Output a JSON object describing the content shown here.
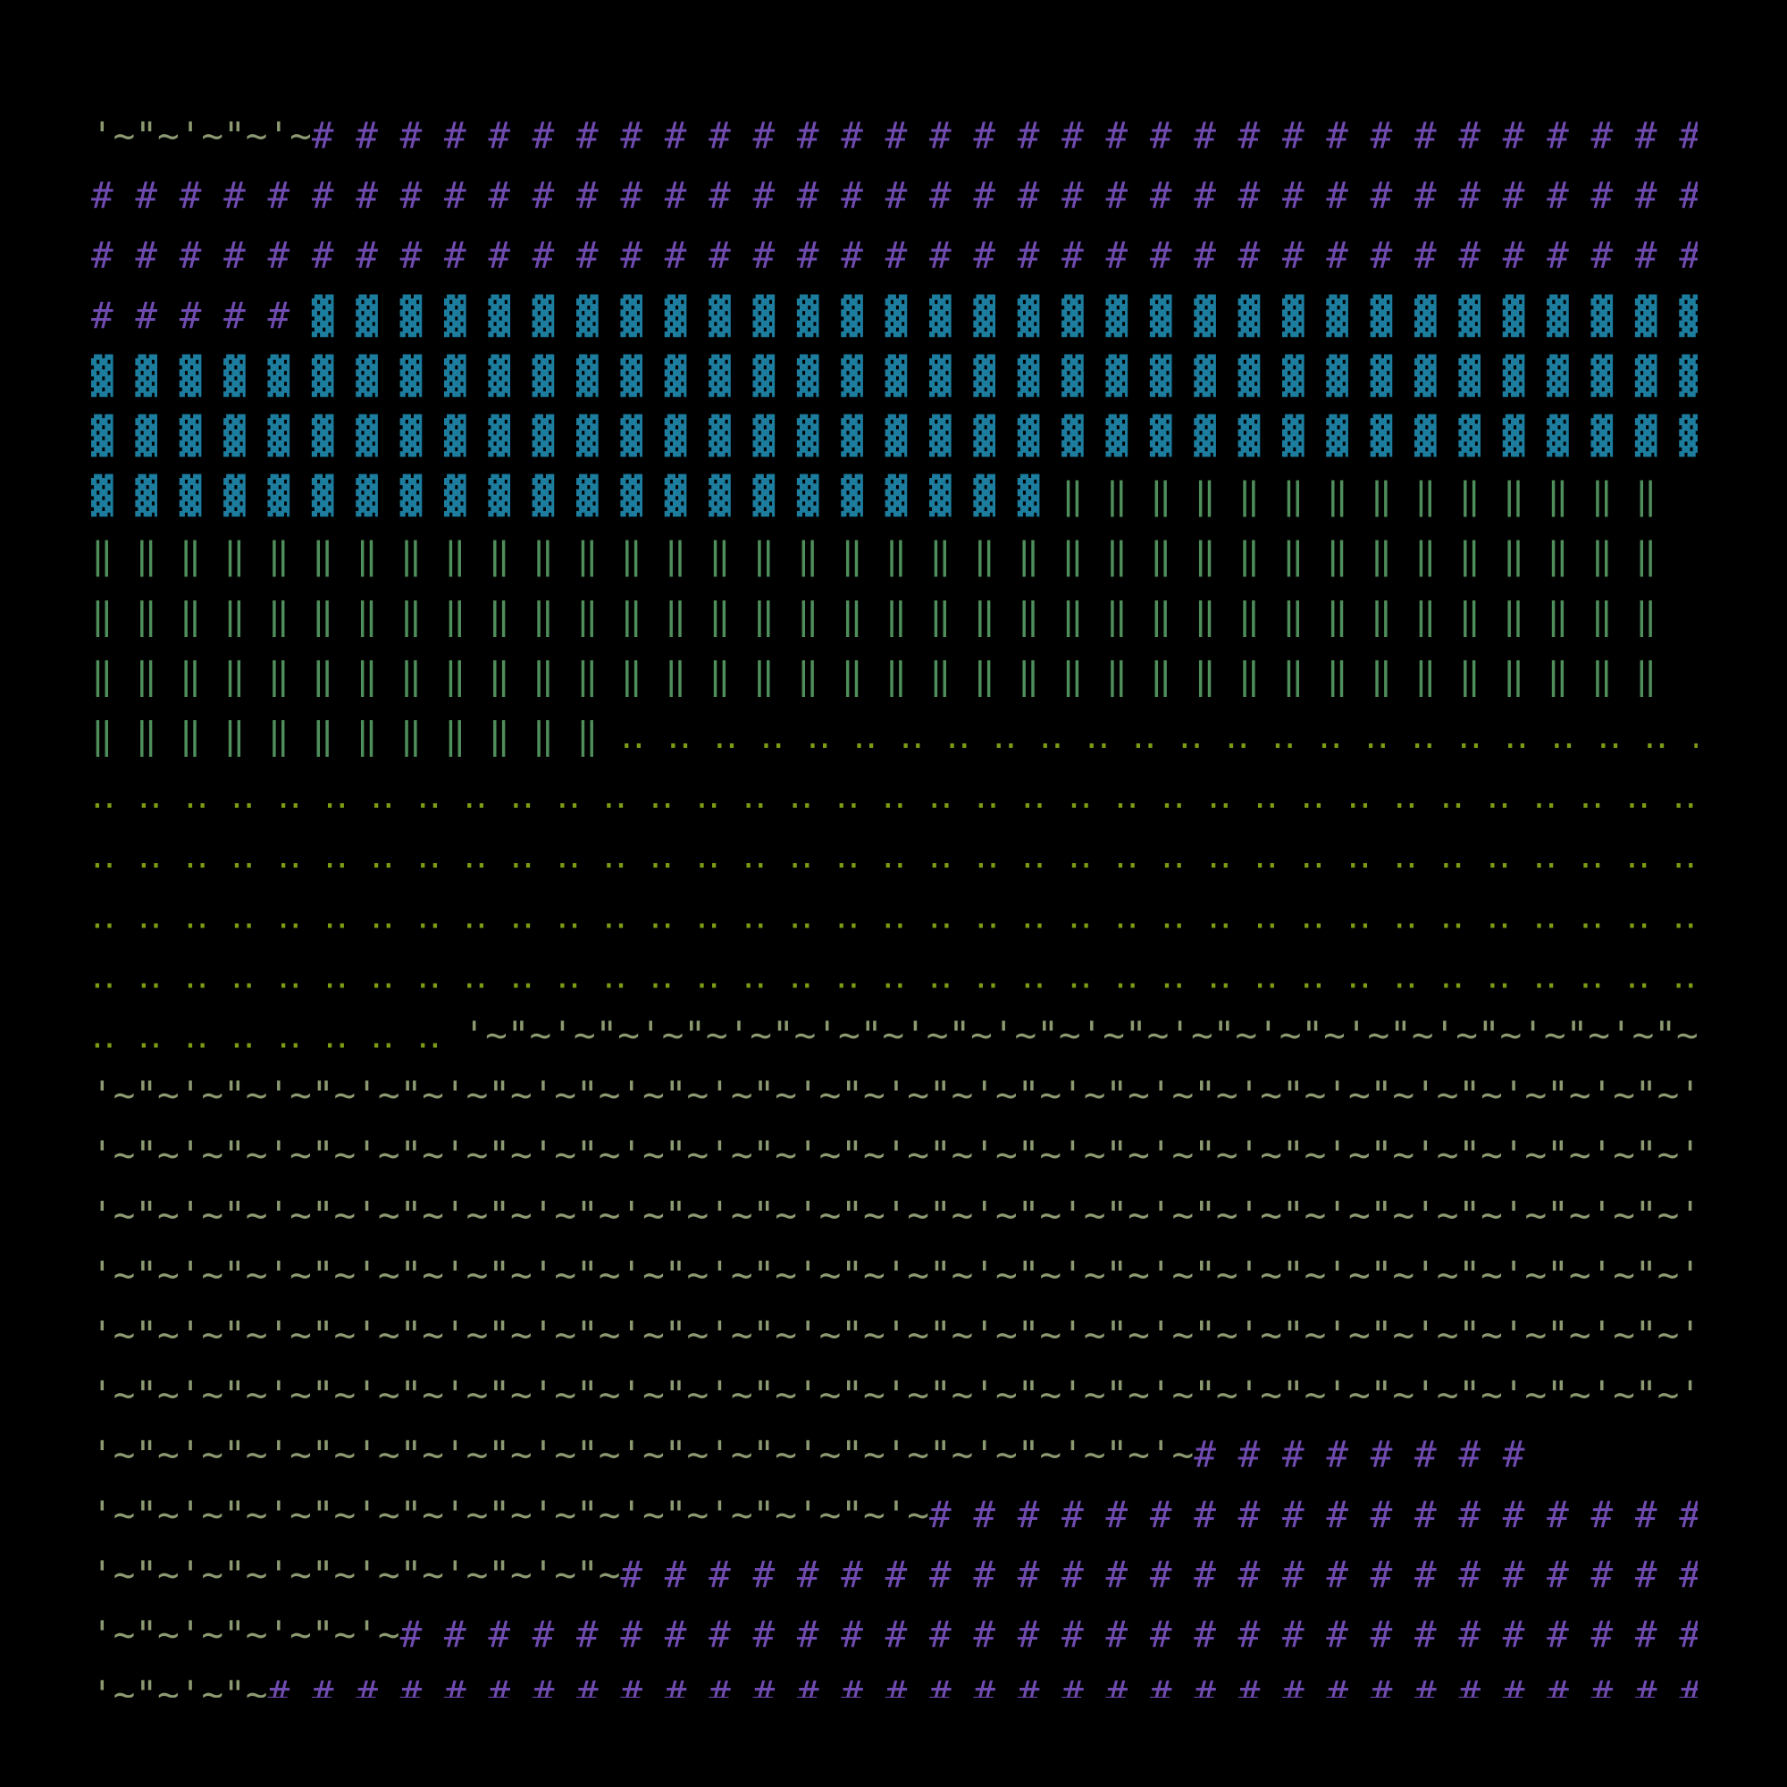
{
  "rows": [
    [
      {
        "text": "'~\"~'~\"~'~",
        "color": "#8c9a72"
      },
      {
        "text": "# # # # # # # # # # # # # # # # # # # # # # # # # # # # # # # # ",
        "color": "#6f4bb0"
      }
    ],
    [
      {
        "text": "# # # # # # # # # # # # # # # # # # # # # # # # # # # # # # # # # # # # # ",
        "color": "#6f4bb0"
      }
    ],
    [
      {
        "text": "# # # # # # # # # # # # # # # # # # # # # # # # # # # # # # # # # # # # # ",
        "color": "#6f4bb0"
      }
    ],
    [
      {
        "text": "# # # # # ",
        "color": "#6f4bb0"
      },
      {
        "text": "▓ ▓ ▓ ▓ ▓ ▓ ▓ ▓ ▓ ▓ ▓ ▓ ▓ ▓ ▓ ▓ ▓ ▓ ▓ ▓ ▓ ▓ ▓ ▓ ▓ ▓ ▓ ▓ ▓ ▓ ▓ ▓ ",
        "color": "#1d7d9e"
      }
    ],
    [
      {
        "text": "▓ ▓ ▓ ▓ ▓ ▓ ▓ ▓ ▓ ▓ ▓ ▓ ▓ ▓ ▓ ▓ ▓ ▓ ▓ ▓ ▓ ▓ ▓ ▓ ▓ ▓ ▓ ▓ ▓ ▓ ▓ ▓ ▓ ▓ ▓ ▓ ▓ ",
        "color": "#1d7d9e"
      }
    ],
    [
      {
        "text": "▓ ▓ ▓ ▓ ▓ ▓ ▓ ▓ ▓ ▓ ▓ ▓ ▓ ▓ ▓ ▓ ▓ ▓ ▓ ▓ ▓ ▓ ▓ ▓ ▓ ▓ ▓ ▓ ▓ ▓ ▓ ▓ ▓ ▓ ▓ ▓ ▓ ",
        "color": "#1d7d9e"
      }
    ],
    [
      {
        "text": "▓ ▓ ▓ ▓ ▓ ▓ ▓ ▓ ▓ ▓ ▓ ▓ ▓ ▓ ▓ ▓ ▓ ▓ ▓ ▓ ▓ ▓ ",
        "color": "#1d7d9e"
      },
      {
        "text": "‖ ‖ ‖ ‖ ‖ ‖ ‖ ‖ ‖ ‖ ‖ ‖ ‖ ‖ ",
        "color": "#4f8f5c"
      }
    ],
    [
      {
        "text": "‖ ‖ ‖ ‖ ‖ ‖ ‖ ‖ ‖ ‖ ‖ ‖ ‖ ‖ ‖ ‖ ‖ ‖ ‖ ‖ ‖ ‖ ‖ ‖ ‖ ‖ ‖ ‖ ‖ ‖ ‖ ‖ ‖ ‖ ‖ ‖ ",
        "color": "#4f8f5c"
      }
    ],
    [
      {
        "text": "‖ ‖ ‖ ‖ ‖ ‖ ‖ ‖ ‖ ‖ ‖ ‖ ‖ ‖ ‖ ‖ ‖ ‖ ‖ ‖ ‖ ‖ ‖ ‖ ‖ ‖ ‖ ‖ ‖ ‖ ‖ ‖ ‖ ‖ ‖ ‖ ",
        "color": "#4f8f5c"
      }
    ],
    [
      {
        "text": "‖ ‖ ‖ ‖ ‖ ‖ ‖ ‖ ‖ ‖ ‖ ‖ ‖ ‖ ‖ ‖ ‖ ‖ ‖ ‖ ‖ ‖ ‖ ‖ ‖ ‖ ‖ ‖ ‖ ‖ ‖ ‖ ‖ ‖ ‖ ‖ ",
        "color": "#4f8f5c"
      }
    ],
    [
      {
        "text": "‖ ‖ ‖ ‖ ‖ ‖ ‖ ‖ ‖ ‖ ‖ ‖ ",
        "color": "#4f8f5c"
      },
      {
        "text": "‥ ‥ ‥ ‥ ‥ ‥ ‥ ‥ ‥ ‥ ‥ ‥ ‥ ‥ ‥ ‥ ‥ ‥ ‥ ‥ ‥ ‥ ‥ ‥ ‥ ",
        "color": "#7d9c14"
      }
    ],
    [
      {
        "text": "‥ ‥ ‥ ‥ ‥ ‥ ‥ ‥ ‥ ‥ ‥ ‥ ‥ ‥ ‥ ‥ ‥ ‥ ‥ ‥ ‥ ‥ ‥ ‥ ‥ ‥ ‥ ‥ ‥ ‥ ‥ ‥ ‥ ‥ ‥ ‥ ‥ ",
        "color": "#7d9c14"
      }
    ],
    [
      {
        "text": "‥ ‥ ‥ ‥ ‥ ‥ ‥ ‥ ‥ ‥ ‥ ‥ ‥ ‥ ‥ ‥ ‥ ‥ ‥ ‥ ‥ ‥ ‥ ‥ ‥ ‥ ‥ ‥ ‥ ‥ ‥ ‥ ‥ ‥ ‥ ‥ ‥ ",
        "color": "#7d9c14"
      }
    ],
    [
      {
        "text": "‥ ‥ ‥ ‥ ‥ ‥ ‥ ‥ ‥ ‥ ‥ ‥ ‥ ‥ ‥ ‥ ‥ ‥ ‥ ‥ ‥ ‥ ‥ ‥ ‥ ‥ ‥ ‥ ‥ ‥ ‥ ‥ ‥ ‥ ‥ ‥ ‥ ",
        "color": "#7d9c14"
      }
    ],
    [
      {
        "text": "‥ ‥ ‥ ‥ ‥ ‥ ‥ ‥ ‥ ‥ ‥ ‥ ‥ ‥ ‥ ‥ ‥ ‥ ‥ ‥ ‥ ‥ ‥ ‥ ‥ ‥ ‥ ‥ ‥ ‥ ‥ ‥ ‥ ‥ ‥ ‥ ",
        "color": "#7d9c14"
      },
      {
        "text": "'~",
        "color": "#8c9a72"
      }
    ],
    [
      {
        "text": "‥ ‥ ‥ ‥ ‥ ‥ ‥ ‥ ",
        "color": "#7d9c14"
      },
      {
        "text": "'~\"~'~\"~'~\"~'~\"~'~\"~'~\"~'~\"~'~\"~'~\"~'~\"~'~\"~'~\"~'~\"~'~\"~'~",
        "color": "#8c9a72"
      }
    ],
    [
      {
        "text": "'~\"~'~\"~'~\"~'~\"~'~\"~'~\"~'~\"~'~\"~'~\"~'~\"~'~\"~'~\"~'~\"~'~\"~'~\"~'~\"~'~\"~'~\"~'~",
        "color": "#8c9a72"
      }
    ],
    [
      {
        "text": "'~\"~'~\"~'~\"~'~\"~'~\"~'~\"~'~\"~'~\"~'~\"~'~\"~'~\"~'~\"~'~\"~'~\"~'~\"~'~\"~'~\"~'~\"~'~",
        "color": "#8c9a72"
      }
    ],
    [
      {
        "text": "'~\"~'~\"~'~\"~'~\"~'~\"~'~\"~'~\"~'~\"~'~\"~'~\"~'~\"~'~\"~'~\"~'~\"~'~\"~'~\"~'~\"~'~\"~'~",
        "color": "#8c9a72"
      }
    ],
    [
      {
        "text": "'~\"~'~\"~'~\"~'~\"~'~\"~'~\"~'~\"~'~\"~'~\"~'~\"~'~\"~'~\"~'~\"~'~\"~'~\"~'~\"~'~\"~'~\"~'~",
        "color": "#8c9a72"
      }
    ],
    [
      {
        "text": "'~\"~'~\"~'~\"~'~\"~'~\"~'~\"~'~\"~'~\"~'~\"~'~\"~'~\"~'~\"~'~\"~'~\"~'~\"~'~\"~'~\"~'~\"~'~",
        "color": "#8c9a72"
      }
    ],
    [
      {
        "text": "'~\"~'~\"~'~\"~'~\"~'~\"~'~\"~'~\"~'~\"~'~\"~'~\"~'~\"~'~\"~'~\"~'~\"~'~\"~'~\"~'~\"~'~\"~'~",
        "color": "#8c9a72"
      }
    ],
    [
      {
        "text": "'~\"~'~\"~'~\"~'~\"~'~\"~'~\"~'~\"~'~\"~'~\"~'~\"~'~\"~'~\"~'~",
        "color": "#8c9a72"
      },
      {
        "text": "# # # # # # # # ",
        "color": "#6f4bb0"
      }
    ],
    [
      {
        "text": "'~\"~'~\"~'~\"~'~\"~'~\"~'~\"~'~\"~'~\"~'~\"~'~",
        "color": "#8c9a72"
      },
      {
        "text": "# # # # # # # # # # # # # # # # # # ",
        "color": "#6f4bb0"
      }
    ],
    [
      {
        "text": "'~\"~'~\"~'~\"~'~\"~'~\"~'~\"~",
        "color": "#8c9a72"
      },
      {
        "text": "# # # # # # # # # # # # # # # # # # # # # # # # # ",
        "color": "#6f4bb0"
      }
    ],
    [
      {
        "text": "'~\"~'~\"~'~\"~'~",
        "color": "#8c9a72"
      },
      {
        "text": "# # # # # # # # # # # # # # # # # # # # # # # # # # # # # # ",
        "color": "#6f4bb0"
      }
    ],
    [
      {
        "text": "'~\"~'~\"~",
        "color": "#8c9a72"
      },
      {
        "text": "# # # # # # # # # # # # # # # # # # # # # # # # # # # # # # # # # ",
        "color": "#6f4bb0"
      }
    ]
  ]
}
